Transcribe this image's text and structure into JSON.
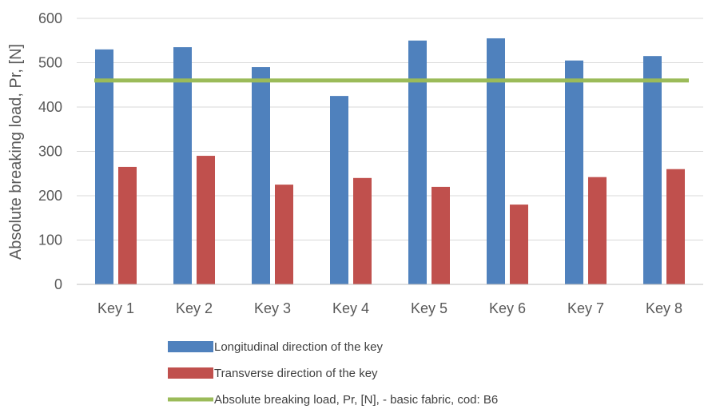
{
  "chart_data": {
    "type": "bar",
    "title": "",
    "xlabel": "",
    "ylabel": "Absolute breaking load, Pr, [N]",
    "categories": [
      "Key 1",
      "Key 2",
      "Key 3",
      "Key 4",
      "Key 5",
      "Key 6",
      "Key 7",
      "Key 8"
    ],
    "series": [
      {
        "name": "Longitudinal direction of the key",
        "type": "bar",
        "color": "#4F81BD",
        "values": [
          530,
          535,
          490,
          425,
          550,
          555,
          505,
          515
        ]
      },
      {
        "name": "Transverse direction of the key",
        "type": "bar",
        "color": "#C0504D",
        "values": [
          265,
          290,
          225,
          240,
          220,
          180,
          242,
          260
        ]
      },
      {
        "name": "Absolute breaking load, Pr,  [N], - basic fabric, cod: B6",
        "type": "line",
        "color": "#9BBB59",
        "values": [
          460,
          460,
          460,
          460,
          460,
          460,
          460,
          460
        ]
      }
    ],
    "ylim": [
      0,
      600
    ],
    "yticks": [
      0,
      100,
      200,
      300,
      400,
      500,
      600
    ],
    "grid": true,
    "legend_position": "bottom"
  }
}
